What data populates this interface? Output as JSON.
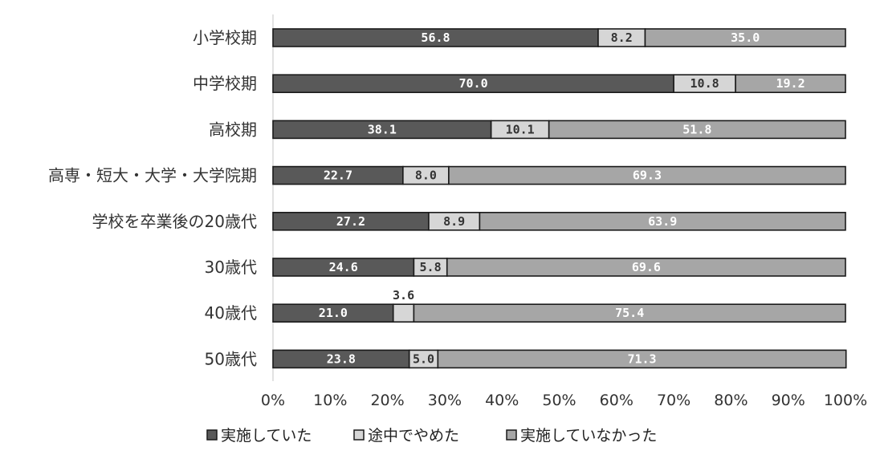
{
  "chart_data": {
    "type": "bar",
    "orientation": "horizontal",
    "stacked": true,
    "categories": [
      "小学校期",
      "中学校期",
      "高校期",
      "高専・短大・大学・大学院期",
      "学校を卒業後の20歳代",
      "30歳代",
      "40歳代",
      "50歳代"
    ],
    "series": [
      {
        "name": "実施していた",
        "color": "#595959",
        "label_color": "#ffffff",
        "values": [
          56.8,
          70.0,
          38.1,
          22.7,
          27.2,
          24.6,
          21.0,
          23.8
        ],
        "labels": [
          "56.8",
          "70.0",
          "38.1",
          "22.7",
          "27.2",
          "24.6",
          "21.0",
          "23.8"
        ]
      },
      {
        "name": "途中でやめた",
        "color": "#d6d6d6",
        "label_color": "#333333",
        "values": [
          8.2,
          10.8,
          10.1,
          8.0,
          8.9,
          5.8,
          3.6,
          5.0
        ],
        "labels": [
          "8.2",
          "10.8",
          "10.1",
          "8.0",
          "8.9",
          "5.8",
          "3.6",
          "5.0"
        ]
      },
      {
        "name": "実施していなかった",
        "color": "#a6a6a6",
        "label_color": "#ffffff",
        "values": [
          35.0,
          19.2,
          51.8,
          69.3,
          63.9,
          69.6,
          75.4,
          71.3
        ],
        "labels": [
          "35.0",
          "19.2",
          "51.8",
          "69.3",
          "63.9",
          "69.6",
          "75.4",
          "71.3"
        ]
      }
    ],
    "xticks": [
      "0%",
      "10%",
      "20%",
      "30%",
      "40%",
      "50%",
      "60%",
      "70%",
      "80%",
      "90%",
      "100%"
    ],
    "xlim": [
      0,
      100
    ],
    "grid": false,
    "legend_position": "bottom"
  }
}
